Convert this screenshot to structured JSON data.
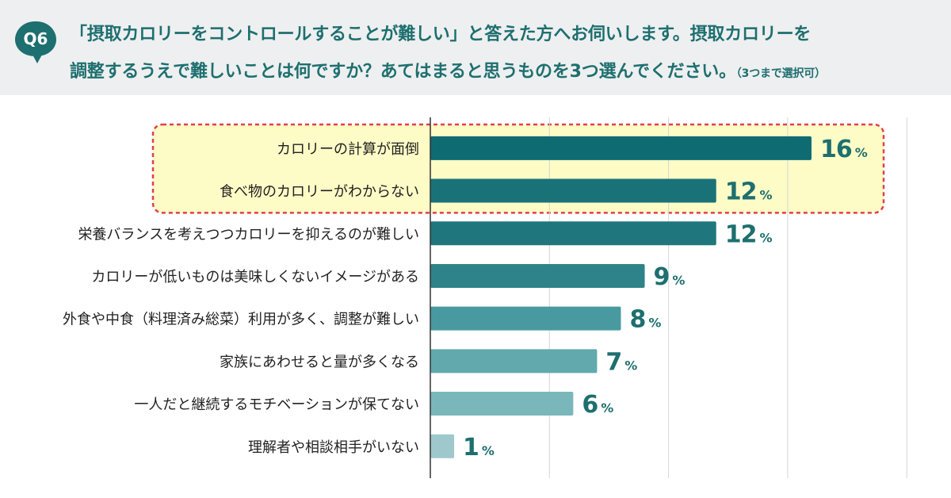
{
  "question": {
    "badge": "Q6",
    "line1": "「摂取カロリーをコントロールすることが難しい」と答えた方へお伺いします。摂取カロリーを",
    "line2": "調整するうえで難しいことは何ですか？あてはまると思うものを3つ選んでください。",
    "note": "（3つまで選択可）"
  },
  "colors": {
    "header_bg": "#eeeff0",
    "text_accent": "#1e6f6f",
    "highlight_fill": "#fdfbc6",
    "highlight_border": "#e0404a"
  },
  "chart_data": {
    "type": "bar",
    "orientation": "horizontal",
    "unit": "%",
    "xlim": [
      0,
      20
    ],
    "grid": true,
    "categories": [
      "カロリーの計算が面倒",
      "食べ物のカロリーがわからない",
      "栄養バランスを考えつつカロリーを抑えるのが難しい",
      "カロリーが低いものは美味しくないイメージがある",
      "外食や中食（料理済み総菜）利用が多く、調整が難しい",
      "家族にあわせると量が多くなる",
      "一人だと継続するモチベーションが保てない",
      "理解者や相談相手がいない"
    ],
    "values": [
      16,
      12,
      12,
      9,
      8,
      7,
      6,
      1
    ],
    "bar_colors": [
      "#0f6b72",
      "#1a7279",
      "#1f767d",
      "#2d8389",
      "#499aa0",
      "#62a9ae",
      "#7ab7bb",
      "#9ec8cb"
    ],
    "highlighted_categories": [
      0,
      1
    ]
  }
}
